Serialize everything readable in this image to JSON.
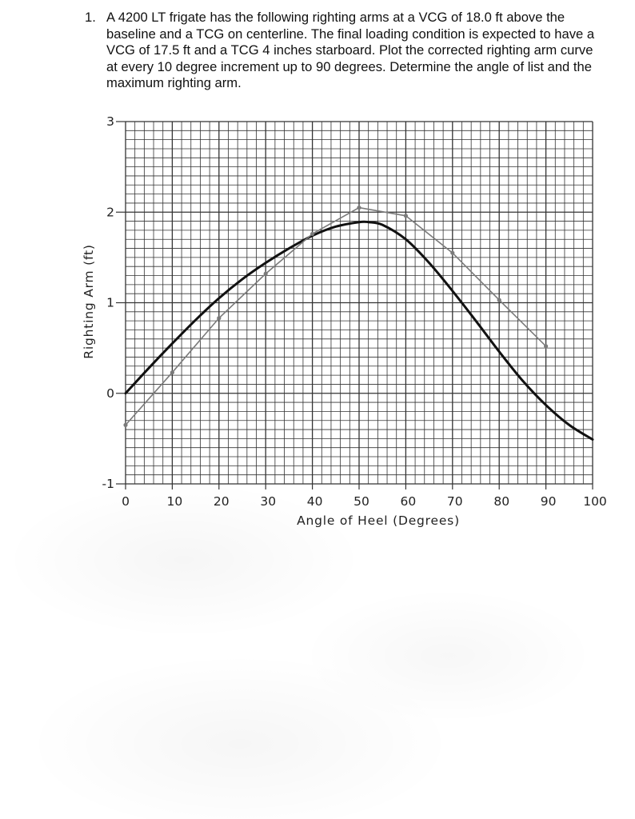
{
  "problem": {
    "number": "1.",
    "text": "A 4200 LT frigate has the following righting arms at a VCG of 18.0 ft above the baseline and a TCG on centerline.  The final loading condition is expected to have a VCG of 17.5 ft and a TCG 4 inches starboard.  Plot the corrected righting arm curve at every 10 degree increment up to 90 degrees.  Determine the angle of list and the maximum righting arm."
  },
  "chart_data": {
    "type": "line",
    "xlabel": "Angle of Heel (Degrees)",
    "ylabel": "Righting Arm (ft)",
    "xlim": [
      0,
      100
    ],
    "ylim": [
      -1,
      3
    ],
    "x_ticks": [
      "0",
      "10",
      "20",
      "30",
      "40",
      "50",
      "60",
      "70",
      "80",
      "90",
      "100"
    ],
    "y_ticks": [
      "-1",
      "0",
      "1",
      "2",
      "3"
    ],
    "grid": true,
    "minor_grid_step_x": 2,
    "minor_grid_step_y": 0.1,
    "series": [
      {
        "style": "thick-black-smooth",
        "color": "#111111",
        "x": [
          0,
          5,
          10,
          15,
          20,
          25,
          30,
          35,
          40,
          45,
          50,
          52,
          55,
          60,
          65,
          70,
          75,
          80,
          85,
          90,
          95,
          100
        ],
        "y": [
          0.0,
          0.28,
          0.55,
          0.81,
          1.05,
          1.26,
          1.44,
          1.6,
          1.74,
          1.84,
          1.89,
          1.89,
          1.86,
          1.7,
          1.44,
          1.13,
          0.8,
          0.46,
          0.14,
          -0.13,
          -0.35,
          -0.51
        ]
      },
      {
        "style": "thin-gray-with-markers",
        "color": "#7a7a7a",
        "x": [
          0,
          10,
          20,
          30,
          40,
          50,
          60,
          70,
          80,
          90
        ],
        "y": [
          -0.35,
          0.23,
          0.83,
          1.32,
          1.76,
          2.05,
          1.96,
          1.55,
          1.03,
          0.52
        ]
      }
    ]
  }
}
